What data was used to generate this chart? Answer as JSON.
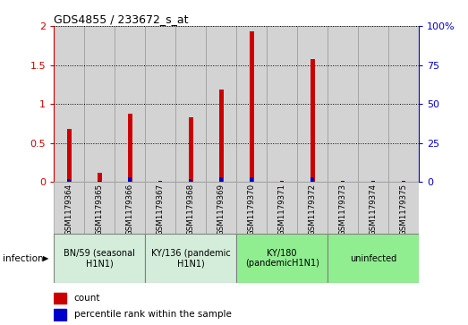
{
  "title": "GDS4855 / 233672_s_at",
  "samples": [
    "GSM1179364",
    "GSM1179365",
    "GSM1179366",
    "GSM1179367",
    "GSM1179368",
    "GSM1179369",
    "GSM1179370",
    "GSM1179371",
    "GSM1179372",
    "GSM1179373",
    "GSM1179374",
    "GSM1179375"
  ],
  "count_values": [
    0.68,
    0.12,
    0.88,
    0.0,
    0.83,
    1.18,
    1.93,
    0.0,
    1.58,
    0.0,
    0.0,
    0.0
  ],
  "percentile_values": [
    2,
    1,
    3,
    1,
    2,
    3,
    3,
    1,
    3,
    1,
    1,
    1
  ],
  "count_color": "#cc0000",
  "percentile_color": "#0000cc",
  "ylim_left": [
    0,
    2
  ],
  "ylim_right": [
    0,
    100
  ],
  "yticks_left": [
    0,
    0.5,
    1.0,
    1.5,
    2.0
  ],
  "yticks_right": [
    0,
    25,
    50,
    75,
    100
  ],
  "ytick_labels_left": [
    "0",
    "0.5",
    "1",
    "1.5",
    "2"
  ],
  "ytick_labels_right": [
    "0",
    "25",
    "50",
    "75",
    "100%"
  ],
  "groups": [
    {
      "label": "BN/59 (seasonal\nH1N1)",
      "start": 0,
      "end": 3,
      "color": "#d4edda"
    },
    {
      "label": "KY/136 (pandemic\nH1N1)",
      "start": 3,
      "end": 6,
      "color": "#d4edda"
    },
    {
      "label": "KY/180\n(pandemicH1N1)",
      "start": 6,
      "end": 9,
      "color": "#90ee90"
    },
    {
      "label": "uninfected",
      "start": 9,
      "end": 12,
      "color": "#90ee90"
    }
  ],
  "infection_label": "infection",
  "legend_count": "count",
  "legend_percentile": "percentile rank within the sample",
  "bar_width": 0.15,
  "percentile_bar_width": 0.12,
  "bg_color": "#d3d3d3",
  "plot_bg": "#ffffff",
  "cell_border_color": "#999999"
}
